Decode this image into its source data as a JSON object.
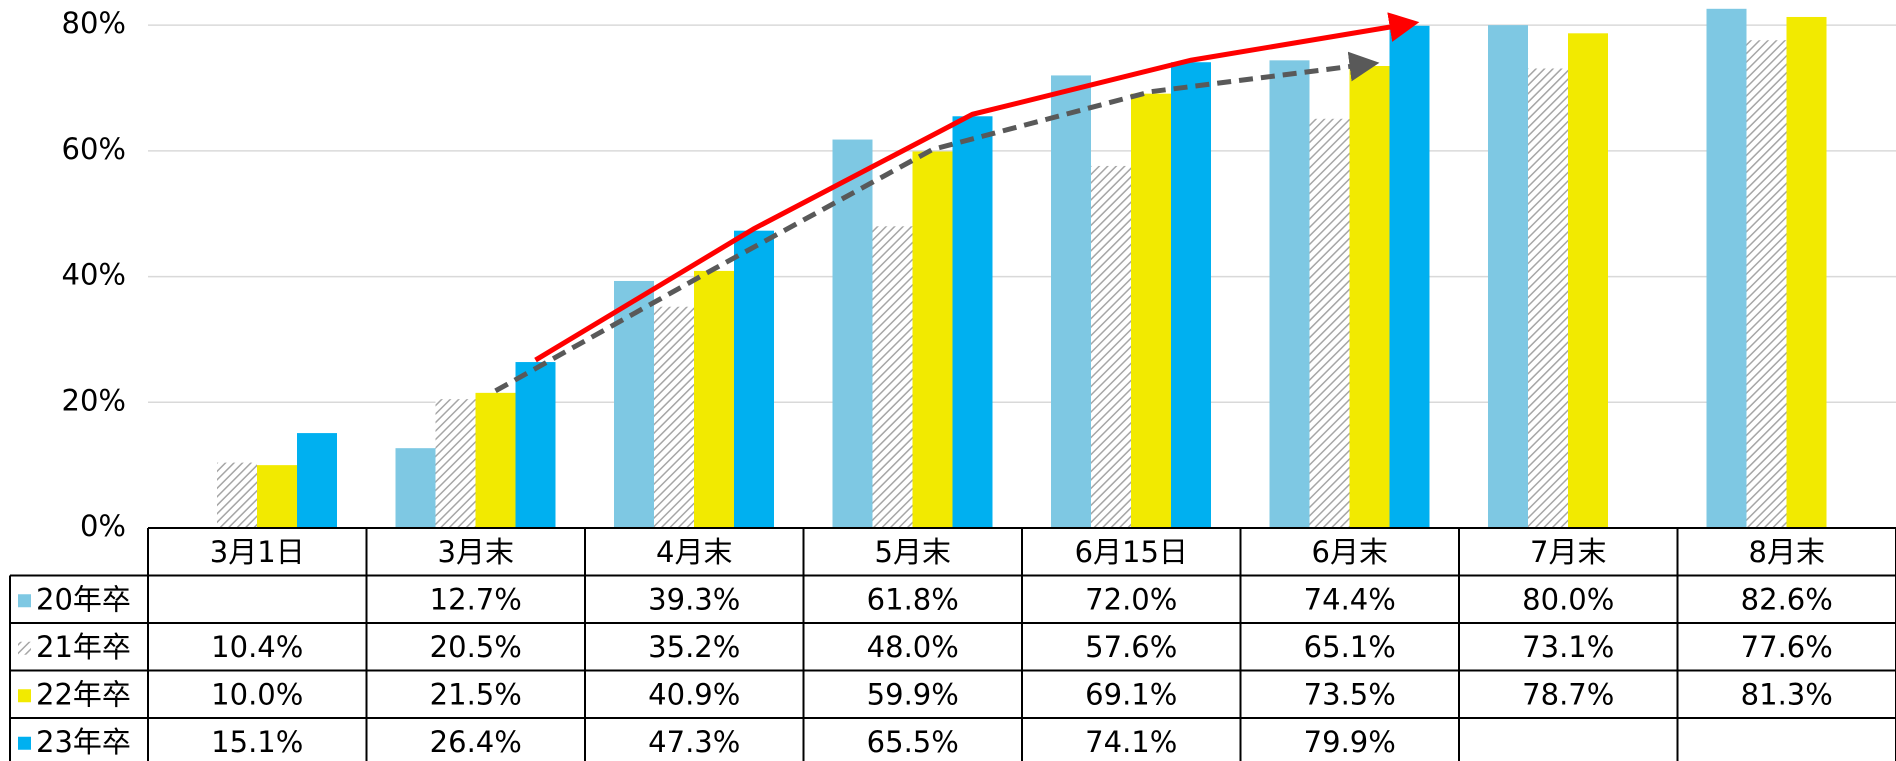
{
  "chart_data": {
    "type": "bar",
    "categories": [
      "3月1日",
      "3月末",
      "4月末",
      "5月末",
      "6月15日",
      "6月末",
      "7月末",
      "8月末"
    ],
    "series": [
      {
        "name": "20年卒",
        "color": "#7ec8e3",
        "values": [
          null,
          12.7,
          39.3,
          61.8,
          72.0,
          74.4,
          80.0,
          82.6
        ],
        "value_labels": [
          null,
          "12.7%",
          "39.3%",
          "61.8%",
          "72.0%",
          "74.4%",
          "80.0%",
          "82.6%"
        ]
      },
      {
        "name": "21年卒",
        "color": "#a6a6a6",
        "values": [
          10.4,
          20.5,
          35.2,
          48.0,
          57.6,
          65.1,
          73.1,
          77.6
        ],
        "value_labels": [
          "10.4%",
          "20.5%",
          "35.2%",
          "48.0%",
          "57.6%",
          "65.1%",
          "73.1%",
          "77.6%"
        ]
      },
      {
        "name": "22年卒",
        "color": "#f2ea00",
        "values": [
          10.0,
          21.5,
          40.9,
          59.9,
          69.1,
          73.5,
          78.7,
          81.3
        ],
        "value_labels": [
          "10.0%",
          "21.5%",
          "40.9%",
          "59.9%",
          "69.1%",
          "73.5%",
          "78.7%",
          "81.3%"
        ]
      },
      {
        "name": "23年卒",
        "color": "#00b0f0",
        "values": [
          15.1,
          26.4,
          47.3,
          65.5,
          74.1,
          79.9,
          null,
          null
        ],
        "value_labels": [
          "15.1%",
          "26.4%",
          "47.3%",
          "65.5%",
          "74.1%",
          "79.9%",
          null,
          null
        ]
      }
    ],
    "ylim": [
      0,
      84
    ],
    "yticks": [
      {
        "value": 0,
        "label": "0%"
      },
      {
        "value": 20,
        "label": "20%"
      },
      {
        "value": 40,
        "label": "40%"
      },
      {
        "value": 60,
        "label": "60%"
      },
      {
        "value": 80,
        "label": "80%"
      }
    ],
    "grid": true
  }
}
